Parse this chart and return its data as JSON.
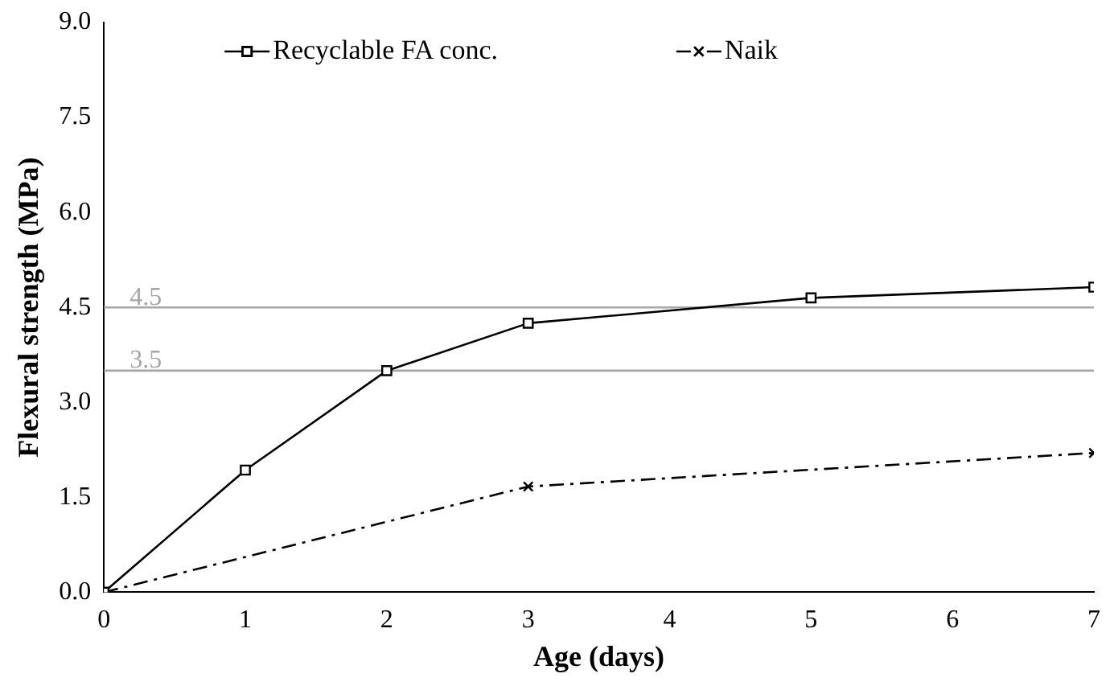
{
  "chart_data": {
    "type": "line",
    "xlabel": "Age (days)",
    "ylabel": "Flexural strength (MPa)",
    "xlim": [
      0,
      7
    ],
    "xticks": [
      0,
      1,
      2,
      3,
      4,
      5,
      6,
      7
    ],
    "ylim": [
      0,
      9
    ],
    "yticks": [
      {
        "value": 0,
        "label": "0.0"
      },
      {
        "value": 1.5,
        "label": "1.5"
      },
      {
        "value": 3,
        "label": "3.0"
      },
      {
        "value": 4.5,
        "label": "4.5"
      },
      {
        "value": 6,
        "label": "6.0"
      },
      {
        "value": 7.5,
        "label": "7.5"
      },
      {
        "value": 9,
        "label": "9.0"
      }
    ],
    "series": [
      {
        "name": "Recyclable FA conc.",
        "color": "#000000",
        "x": [
          0,
          1,
          2,
          3,
          5,
          7
        ],
        "values": [
          0,
          1.93,
          3.5,
          4.25,
          4.65,
          4.82
        ],
        "marker": "square",
        "line_style": "solid"
      },
      {
        "name": "Naik",
        "color": "#000000",
        "x": [
          0,
          3,
          7
        ],
        "values": [
          0,
          1.67,
          2.2
        ],
        "marker": "cross",
        "line_style": "dashed"
      }
    ],
    "ref_lines": [
      {
        "axis": "y",
        "value": 4.5,
        "label": "4.5",
        "color": "#a6a6a6"
      },
      {
        "axis": "y",
        "value": 3.5,
        "label": "3.5",
        "color": "#a6a6a6"
      }
    ],
    "grid": false,
    "legend": "top"
  }
}
